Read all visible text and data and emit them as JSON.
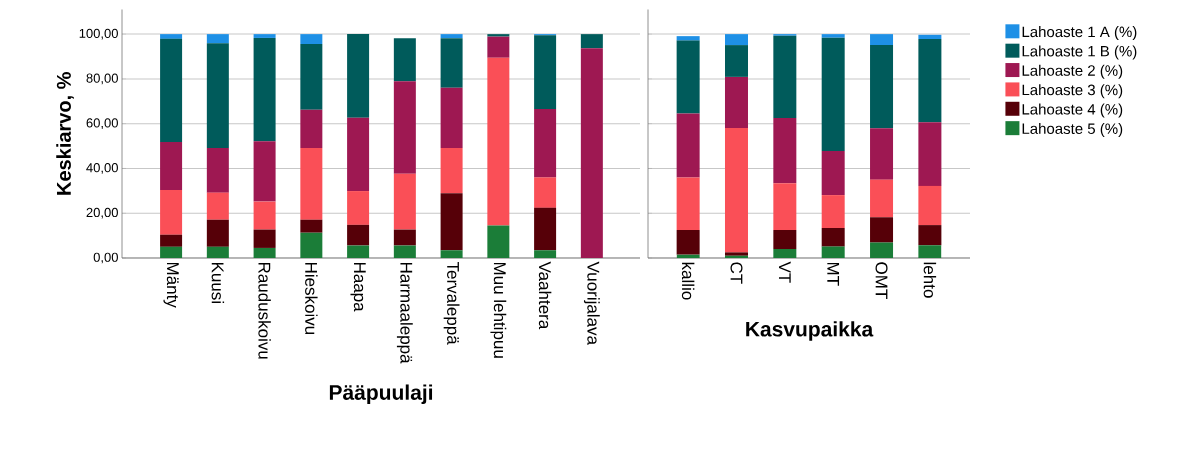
{
  "chart_data": [
    {
      "type": "bar",
      "stacked": true,
      "ylabel": "Keskiarvo, %",
      "xlabel": "Pääpuulaji",
      "categories": [
        "Mänty",
        "Kuusi",
        "Rauduskoivu",
        "Hieskoivu",
        "Haapa",
        "Harmaaleppä",
        "Tervaleppä",
        "Muu lehtipuu",
        "Vaahtera",
        "Vuorijalava"
      ],
      "ylim": [
        0,
        111
      ],
      "yticks": [
        {
          "value": 0,
          "label": "0,00"
        },
        {
          "value": 20,
          "label": "20,00"
        },
        {
          "value": 40,
          "label": "40,00"
        },
        {
          "value": 60,
          "label": "60,00"
        },
        {
          "value": 80,
          "label": "80,00"
        },
        {
          "value": 100,
          "label": "100,00"
        }
      ],
      "grid": "y",
      "series": [
        {
          "color": "#1b7d38",
          "values": [
            5.0,
            5.0,
            4.5,
            11.3,
            5.6,
            5.6,
            3.5,
            14.5,
            3.5,
            0
          ]
        },
        {
          "color": "#560008",
          "values": [
            5.4,
            12.1,
            8.2,
            5.8,
            9.2,
            7.1,
            25.4,
            0,
            18.9,
            0
          ]
        },
        {
          "color": "#fa4f57",
          "values": [
            20.0,
            12.1,
            12.5,
            32.0,
            15.1,
            24.9,
            20.2,
            74.9,
            13.6,
            0
          ]
        },
        {
          "color": "#9e1852",
          "values": [
            21.4,
            19.9,
            26.9,
            17.1,
            32.8,
            41.4,
            26.9,
            9.5,
            30.6,
            93.7
          ]
        },
        {
          "color": "#005b5b",
          "values": [
            46.1,
            46.8,
            46.2,
            29.4,
            37.3,
            19.2,
            22.2,
            1.1,
            32.9,
            6.3
          ]
        },
        {
          "color": "#1e90e6",
          "values": [
            2.1,
            4.1,
            1.7,
            4.4,
            0,
            0,
            1.8,
            0,
            0.5,
            0
          ]
        }
      ]
    },
    {
      "type": "bar",
      "stacked": true,
      "xlabel": "Kasvupaikka",
      "categories": [
        "kallio",
        "CT",
        "VT",
        "MT",
        "OMT",
        "lehto"
      ],
      "ylim": [
        0,
        111
      ],
      "yticks": [
        {
          "value": 0,
          "label": null
        },
        {
          "value": 20,
          "label": null
        },
        {
          "value": 40,
          "label": null
        },
        {
          "value": 60,
          "label": null
        },
        {
          "value": 80,
          "label": null
        },
        {
          "value": 100,
          "label": null
        }
      ],
      "tick_labels": "x",
      "grid": "y",
      "legend": "right",
      "series": [
        {
          "name": "Lahoaste 5 (%)",
          "color": "#1b7d38",
          "values": [
            1.5,
            1.0,
            4.0,
            5.1,
            6.9,
            5.7
          ]
        },
        {
          "name": "Lahoaste 4 (%)",
          "color": "#560008",
          "values": [
            11.0,
            1.5,
            8.5,
            8.3,
            11.3,
            9.0
          ]
        },
        {
          "name": "Lahoaste 3 (%)",
          "color": "#fa4f57",
          "values": [
            23.5,
            55.6,
            20.9,
            14.7,
            16.8,
            17.5
          ]
        },
        {
          "name": "Lahoaste 2 (%)",
          "color": "#9e1852",
          "values": [
            28.6,
            22.8,
            29.1,
            19.7,
            22.9,
            28.4
          ]
        },
        {
          "name": "Lahoaste 1 B (%)",
          "color": "#005b5b",
          "values": [
            32.5,
            14.2,
            36.8,
            50.6,
            37.2,
            37.2
          ]
        },
        {
          "name": "Lahoaste 1 A (%)",
          "color": "#1e90e6",
          "values": [
            2.0,
            4.9,
            0.7,
            1.6,
            4.9,
            1.9
          ]
        }
      ]
    }
  ]
}
